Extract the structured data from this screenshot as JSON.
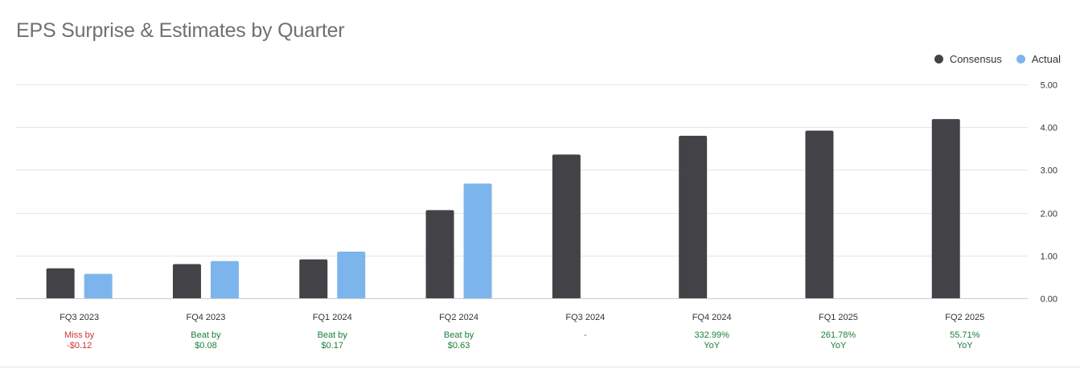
{
  "chart_data": {
    "type": "bar",
    "title": "EPS Surprise & Estimates by Quarter",
    "categories": [
      "FQ3 2023",
      "FQ4 2023",
      "FQ1 2024",
      "FQ2 2024",
      "FQ3 2024",
      "FQ4 2024",
      "FQ1 2025",
      "FQ2 2025"
    ],
    "series": [
      {
        "name": "Consensus",
        "color": "#434347",
        "values": [
          0.7,
          0.8,
          0.91,
          2.06,
          3.36,
          3.8,
          3.92,
          4.19
        ]
      },
      {
        "name": "Actual",
        "color": "#7cb5ec",
        "values": [
          0.57,
          0.87,
          1.09,
          2.68,
          null,
          null,
          null,
          null
        ]
      }
    ],
    "ylim": [
      0,
      5
    ],
    "yticks": [
      "0.00",
      "1.00",
      "2.00",
      "3.00",
      "4.00",
      "5.00"
    ],
    "ytick_values": [
      0,
      1,
      2,
      3,
      4,
      5
    ],
    "y_axis_side": "right",
    "grid": true,
    "legend": "top-right",
    "surprise_labels": [
      {
        "line1": "Miss by",
        "line2": "-$0.12",
        "color": "#cc3333"
      },
      {
        "line1": "Beat by",
        "line2": "$0.08",
        "color": "#1a7f37"
      },
      {
        "line1": "Beat by",
        "line2": "$0.17",
        "color": "#1a7f37"
      },
      {
        "line1": "Beat by",
        "line2": "$0.63",
        "color": "#1a7f37"
      },
      {
        "line1": "-",
        "line2": "",
        "color": "#cc3333"
      },
      {
        "line1": "332.99%",
        "line2": "YoY",
        "color": "#1a7f37"
      },
      {
        "line1": "261.78%",
        "line2": "YoY",
        "color": "#1a7f37"
      },
      {
        "line1": "55.71%",
        "line2": "YoY",
        "color": "#1a7f37"
      }
    ]
  }
}
